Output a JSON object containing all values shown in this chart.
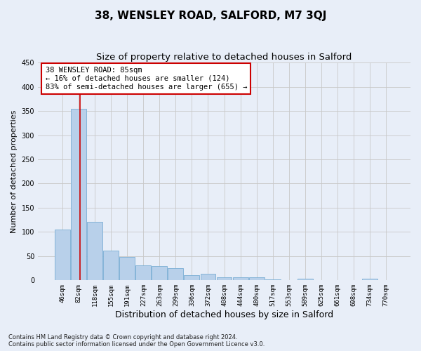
{
  "title": "38, WENSLEY ROAD, SALFORD, M7 3QJ",
  "subtitle": "Size of property relative to detached houses in Salford",
  "xlabel": "Distribution of detached houses by size in Salford",
  "ylabel": "Number of detached properties",
  "bar_labels": [
    "46sqm",
    "82sqm",
    "118sqm",
    "155sqm",
    "191sqm",
    "227sqm",
    "263sqm",
    "299sqm",
    "336sqm",
    "372sqm",
    "408sqm",
    "444sqm",
    "480sqm",
    "517sqm",
    "553sqm",
    "589sqm",
    "625sqm",
    "661sqm",
    "698sqm",
    "734sqm",
    "770sqm"
  ],
  "bar_values": [
    105,
    355,
    121,
    62,
    49,
    31,
    30,
    25,
    11,
    14,
    6,
    7,
    7,
    2,
    1,
    4,
    0,
    1,
    0,
    4,
    0
  ],
  "bar_color": "#b8d0ea",
  "bar_edge_color": "#7aaed4",
  "background_color": "#e8eef8",
  "grid_color": "#c8c8c8",
  "property_line_x": 1.08,
  "annotation_title": "38 WENSLEY ROAD: 85sqm",
  "annotation_line1": "← 16% of detached houses are smaller (124)",
  "annotation_line2": "83% of semi-detached houses are larger (655) →",
  "annotation_box_color": "#ffffff",
  "annotation_border_color": "#cc0000",
  "vline_color": "#cc0000",
  "ylim": [
    0,
    450
  ],
  "yticks": [
    0,
    50,
    100,
    150,
    200,
    250,
    300,
    350,
    400,
    450
  ],
  "footer": "Contains HM Land Registry data © Crown copyright and database right 2024.\nContains public sector information licensed under the Open Government Licence v3.0.",
  "title_fontsize": 11,
  "subtitle_fontsize": 9.5,
  "xlabel_fontsize": 9,
  "ylabel_fontsize": 8,
  "tick_fontsize": 6.5,
  "annotation_fontsize": 7.5
}
